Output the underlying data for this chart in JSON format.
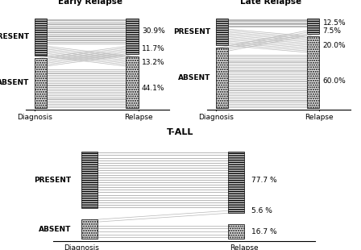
{
  "early_relapse": {
    "title": "Early Relapse",
    "pct_PP": 0.309,
    "pct_PA": 0.132,
    "pct_AP": 0.117,
    "pct_AA": 0.441,
    "labels_right": [
      "30.9%",
      "13.2%",
      "11.7%",
      "44.1%"
    ]
  },
  "late_relapse": {
    "title": "Late Relapse",
    "pct_PP": 0.125,
    "pct_PA": 0.2,
    "pct_AP": 0.075,
    "pct_AA": 0.6,
    "labels_right": [
      "12.5%",
      "20.0%",
      "7.5%",
      "60.0%"
    ]
  },
  "tall": {
    "title": "T-ALL",
    "pct_PP": 0.777,
    "pct_PA": 0.0,
    "pct_AP": 0.056,
    "pct_AA": 0.167,
    "labels_right": [
      "77.7 %",
      "5.6 %",
      "16.7 %"
    ]
  },
  "xlabel_left": "Diagnosis",
  "xlabel_right": "Relapse",
  "ylabel_present": "PRESENT",
  "ylabel_absent": "ABSENT",
  "line_color_dark": "#999999",
  "line_color_light": "#bbbbbb",
  "hatch_present": "------",
  "hatch_absent": "......",
  "bg_color": "#ffffff"
}
